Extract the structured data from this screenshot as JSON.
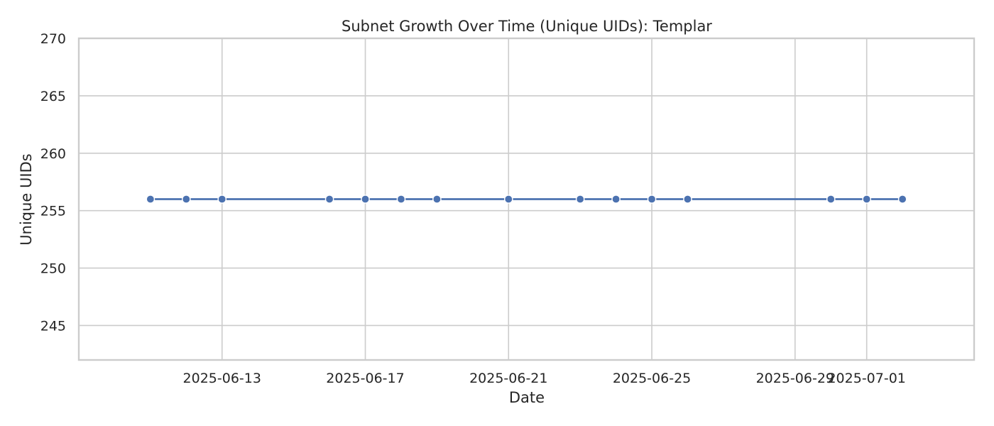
{
  "chart_data": {
    "type": "line",
    "title": "Subnet Growth Over Time (Unique UIDs): Templar",
    "xlabel": "Date",
    "ylabel": "Unique UIDs",
    "x_axis_type": "date",
    "xlim": [
      "2025-06-09",
      "2025-07-04"
    ],
    "ylim": [
      242,
      270
    ],
    "x_ticks": [
      "2025-06-13",
      "2025-06-17",
      "2025-06-21",
      "2025-06-25",
      "2025-06-29",
      "2025-07-01"
    ],
    "y_ticks": [
      245,
      250,
      255,
      260,
      265,
      270
    ],
    "grid": true,
    "legend": "none",
    "series": [
      {
        "color": "#4c72b0",
        "marker": "circle",
        "x": [
          "2025-06-11",
          "2025-06-12",
          "2025-06-13",
          "2025-06-16",
          "2025-06-17",
          "2025-06-18",
          "2025-06-19",
          "2025-06-21",
          "2025-06-23",
          "2025-06-24",
          "2025-06-25",
          "2025-06-26",
          "2025-06-30",
          "2025-07-01",
          "2025-07-02"
        ],
        "values": [
          256,
          256,
          256,
          256,
          256,
          256,
          256,
          256,
          256,
          256,
          256,
          256,
          256,
          256,
          256
        ]
      }
    ]
  }
}
